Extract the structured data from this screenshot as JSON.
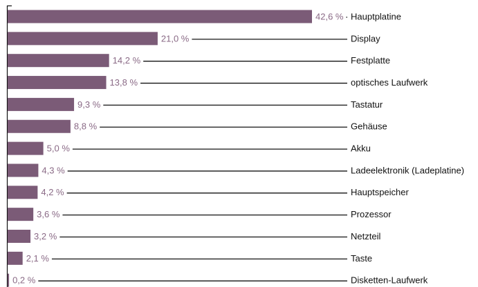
{
  "chart_data": {
    "type": "bar",
    "orientation": "horizontal",
    "color": "#7b5b77",
    "categories": [
      "Hauptplatine",
      "Display",
      "Festplatte",
      "optisches Laufwerk",
      "Tastatur",
      "Gehäuse",
      "Akku",
      "Ladeelektronik (Ladeplatine)",
      "Hauptspeicher",
      "Prozessor",
      "Netzteil",
      "Taste",
      "Disketten-Laufwerk"
    ],
    "values": [
      42.6,
      21.0,
      14.2,
      13.8,
      9.3,
      8.8,
      5.0,
      4.3,
      4.2,
      3.6,
      3.2,
      2.1,
      0.2
    ],
    "value_labels": [
      "42,6 %",
      "21,0 %",
      "14,2 %",
      "13,8 %",
      "9,3 %",
      "8,8 %",
      "5,0 %",
      "4,3 %",
      "4,2 %",
      "3,6 %",
      "3,2 %",
      "2,1 %",
      "0,2 %"
    ]
  }
}
